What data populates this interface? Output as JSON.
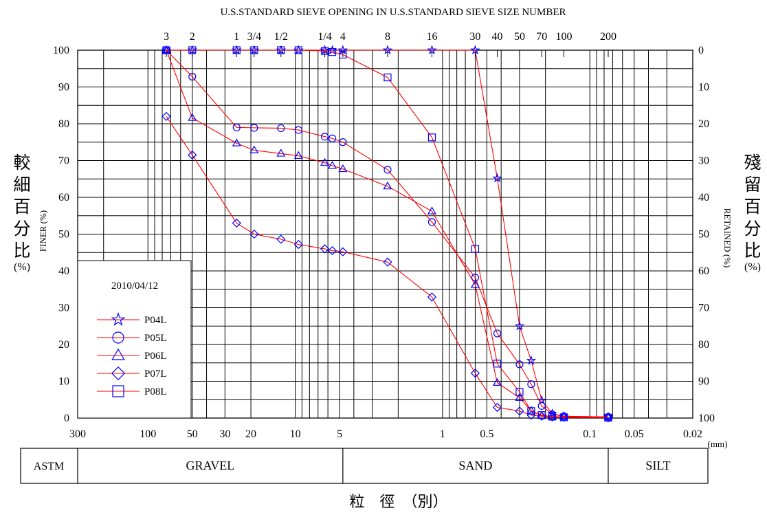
{
  "chart_data": {
    "type": "line",
    "title": "U.S.STANDARD SIEVE OPENING IN U.S.STANDARD SIEVE SIZE NUMBER",
    "x_scale": "log",
    "x_reversed": true,
    "xlim": [
      300,
      0.02
    ],
    "x_unit": "(mm)",
    "x_ticks": [
      "300",
      "100",
      "50",
      "30",
      "20",
      "10",
      "5",
      "1",
      "0.5",
      "0.1",
      "0.05",
      "0.02"
    ],
    "top_ticks": [
      {
        "label": "3",
        "mm": 75
      },
      {
        "label": "2",
        "mm": 50
      },
      {
        "label": "1",
        "mm": 25
      },
      {
        "label": "3/4",
        "mm": 19
      },
      {
        "label": "1/2",
        "mm": 12.5
      },
      {
        "label": "1/4",
        "mm": 6.3
      },
      {
        "label": "4",
        "mm": 4.75
      },
      {
        "label": "8",
        "mm": 2.36
      },
      {
        "label": "16",
        "mm": 1.18
      },
      {
        "label": "30",
        "mm": 0.6
      },
      {
        "label": "40",
        "mm": 0.425
      },
      {
        "label": "50",
        "mm": 0.3
      },
      {
        "label": "70",
        "mm": 0.212
      },
      {
        "label": "100",
        "mm": 0.15
      },
      {
        "label": "200",
        "mm": 0.075
      }
    ],
    "ylim": [
      0,
      100
    ],
    "y_ticks": [
      "0",
      "10",
      "20",
      "30",
      "40",
      "50",
      "60",
      "70",
      "80",
      "90",
      "100"
    ],
    "y2_ticks": [
      "100",
      "90",
      "80",
      "70",
      "60",
      "50",
      "40",
      "30",
      "20",
      "10",
      "0"
    ],
    "ylabel_left_cjk": [
      "較",
      "細",
      "百",
      "分",
      "比"
    ],
    "ylabel_left": "FINER (%)",
    "ylabel_left_pct": "(%)",
    "ylabel_right_cjk": [
      "殘",
      "留",
      "百",
      "分",
      "比"
    ],
    "ylabel_right": "RETAINED (%)",
    "ylabel_right_pct": "(%)",
    "xlabel_cjk": "粒　徑　（別）",
    "grid": true,
    "legend": {
      "position": "bottom-left",
      "title": "2010/04/12"
    },
    "series": [
      {
        "name": "P04L",
        "marker": "star",
        "x": [
          75,
          50,
          25,
          19,
          12.5,
          9.5,
          6.3,
          5.6,
          4.75,
          2.36,
          1.18,
          0.6,
          0.425,
          0.3,
          0.25,
          0.212,
          0.18,
          0.15,
          0.075
        ],
        "y": [
          100,
          100,
          100,
          100,
          100,
          100,
          100,
          100,
          100,
          100,
          100,
          100,
          65.2,
          25,
          15.6,
          4.8,
          1.2,
          0.5,
          0.3
        ]
      },
      {
        "name": "P05L",
        "marker": "circle",
        "x": [
          75,
          50,
          25,
          19,
          12.5,
          9.5,
          6.3,
          5.6,
          4.75,
          2.36,
          1.18,
          0.6,
          0.425,
          0.3,
          0.25,
          0.212,
          0.18,
          0.15,
          0.075
        ],
        "y": [
          100,
          92.8,
          79,
          78.9,
          78.8,
          78.3,
          76.5,
          76,
          75,
          67.5,
          53.3,
          38.2,
          23,
          14.6,
          9.2,
          3.3,
          1,
          0.5,
          0.3
        ]
      },
      {
        "name": "P06L",
        "marker": "triangle",
        "x": [
          75,
          50,
          25,
          19,
          12.5,
          9.5,
          6.3,
          5.6,
          4.75,
          2.36,
          1.18,
          0.6,
          0.425,
          0.3,
          0.25,
          0.212,
          0.18,
          0.15,
          0.075
        ],
        "y": [
          100,
          81.6,
          74.7,
          72.8,
          71.9,
          71.3,
          69.4,
          68.6,
          67.7,
          63,
          56.2,
          36.2,
          9.6,
          5.5,
          2,
          0.6,
          0.4,
          0.3,
          0.2
        ]
      },
      {
        "name": "P07L",
        "marker": "diamond",
        "x": [
          75,
          50,
          25,
          19,
          12.5,
          9.5,
          6.3,
          5.6,
          4.75,
          2.36,
          1.18,
          0.6,
          0.425,
          0.3,
          0.25,
          0.212,
          0.18,
          0.15,
          0.075
        ],
        "y": [
          82,
          71.5,
          53,
          50,
          48.6,
          47.2,
          46,
          45.5,
          45.2,
          42.4,
          32.9,
          12.2,
          2.9,
          1.9,
          0.8,
          0.5,
          0.3,
          0.2,
          0.1
        ]
      },
      {
        "name": "P08L",
        "marker": "square",
        "x": [
          75,
          50,
          25,
          19,
          12.5,
          9.5,
          6.3,
          5.6,
          4.75,
          2.36,
          1.18,
          0.6,
          0.425,
          0.3,
          0.25,
          0.212,
          0.18,
          0.15,
          0.075
        ],
        "y": [
          100,
          100,
          100,
          100,
          100,
          100,
          99.8,
          99.5,
          98.8,
          92.6,
          76.3,
          46,
          14.8,
          7.1,
          1.9,
          0.8,
          0.4,
          0.2,
          0.1
        ]
      }
    ],
    "colors": {
      "line": "#ff0000",
      "marker": "#0000ff",
      "axis": "#000000"
    }
  },
  "classification": {
    "label": "ASTM",
    "bands": [
      {
        "label": "GRAVEL",
        "from_mm": 300,
        "to_mm": 4.75
      },
      {
        "label": "SAND",
        "from_mm": 4.75,
        "to_mm": 0.075
      },
      {
        "label": "SILT",
        "from_mm": 0.075,
        "to_mm": 0.02
      }
    ]
  }
}
